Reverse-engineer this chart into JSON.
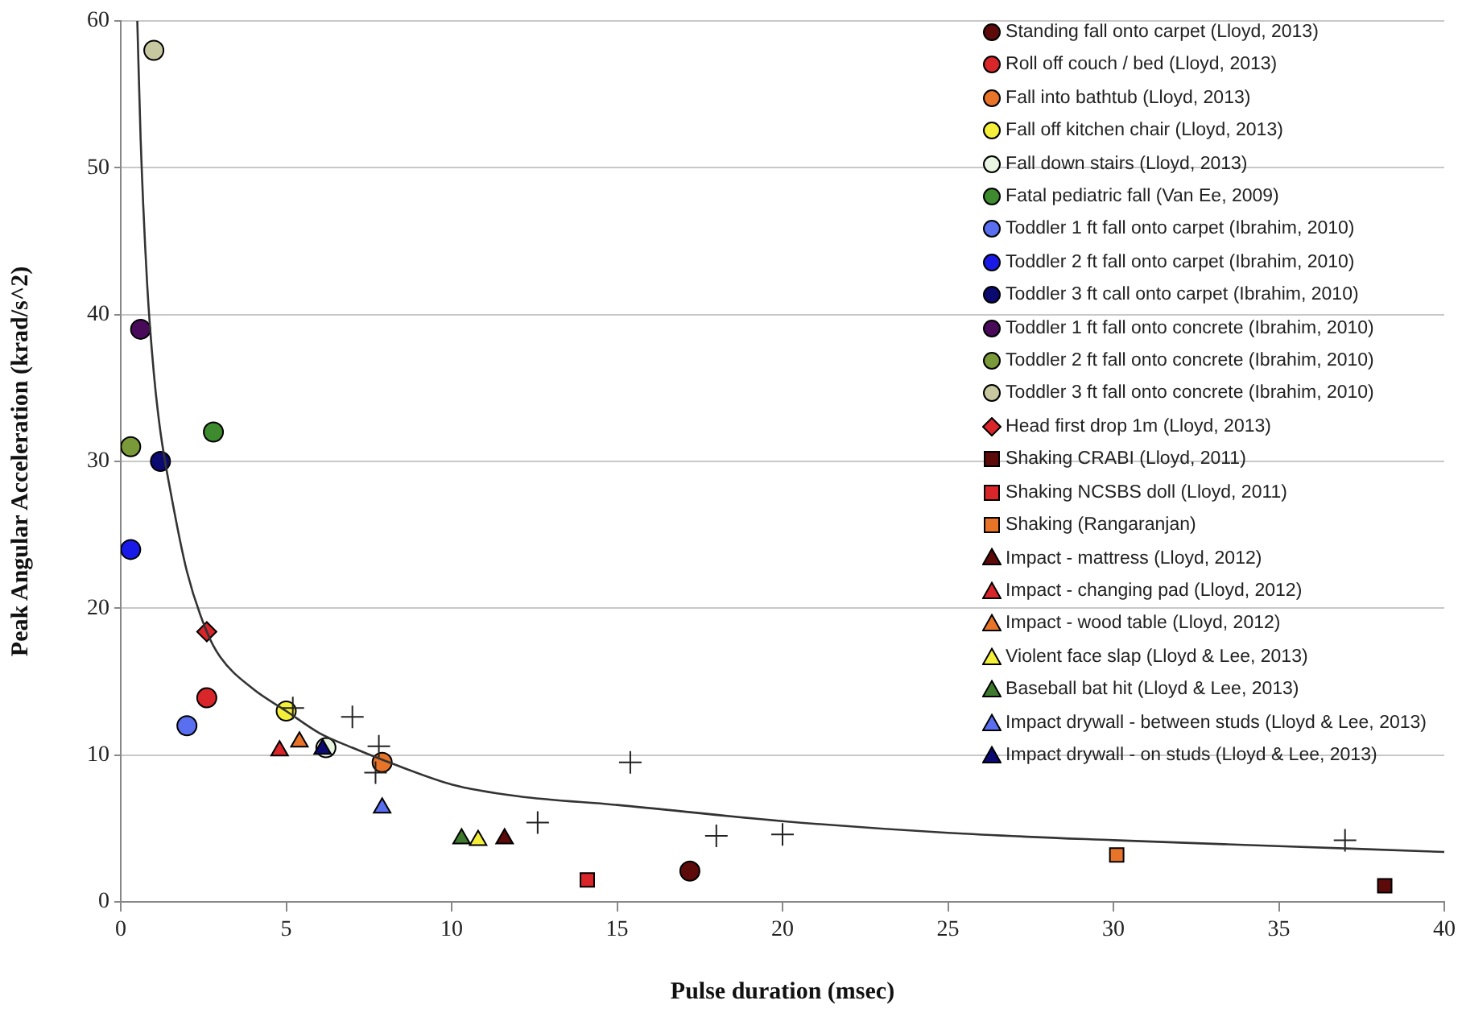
{
  "chart_data": {
    "type": "scatter",
    "xlabel": "Pulse duration (msec)",
    "ylabel": "Peak Angular Acceleration (krad/s^2)",
    "xlim": [
      0,
      40
    ],
    "xticks": [
      0,
      5,
      10,
      15,
      20,
      25,
      30,
      35,
      40
    ],
    "ylim": [
      0,
      60
    ],
    "yticks": [
      0,
      10,
      20,
      30,
      40,
      50,
      60
    ],
    "grid": "y",
    "legend": "top right",
    "series": [
      {
        "name": "Standing fall onto carpet (Lloyd, 2013)",
        "color": "#5c0a0a",
        "marker": "circle",
        "x": [
          17.2
        ],
        "values": [
          2.1
        ]
      },
      {
        "name": "Roll off couch / bed (Lloyd, 2013)",
        "color": "#d9262a",
        "marker": "circle",
        "x": [
          2.6
        ],
        "values": [
          13.9
        ]
      },
      {
        "name": "Fall into bathtub (Lloyd, 2013)",
        "color": "#e8742a",
        "marker": "circle",
        "x": [
          7.9
        ],
        "values": [
          9.5
        ]
      },
      {
        "name": "Fall off kitchen chair (Lloyd, 2013)",
        "color": "#f3ef3a",
        "marker": "circle",
        "x": [
          5.0
        ],
        "values": [
          13.0
        ]
      },
      {
        "name": "Fall down stairs (Lloyd, 2013)",
        "color": "#e8f5e0",
        "marker": "circle",
        "x": [
          6.2
        ],
        "values": [
          10.5
        ]
      },
      {
        "name": "Fatal pediatric fall (Van Ee, 2009)",
        "color": "#3e8a2e",
        "marker": "circle",
        "x": [
          2.8
        ],
        "values": [
          32.0
        ]
      },
      {
        "name": "Toddler 1 ft fall onto carpet (Ibrahim, 2010)",
        "color": "#5a6ef0",
        "marker": "circle",
        "x": [
          2.0
        ],
        "values": [
          12.0
        ]
      },
      {
        "name": "Toddler 2 ft fall onto carpet (Ibrahim, 2010)",
        "color": "#1a1ae8",
        "marker": "circle",
        "x": [
          0.3
        ],
        "values": [
          24.0
        ]
      },
      {
        "name": "Toddler 3 ft call onto carpet (Ibrahim, 2010)",
        "color": "#0a0a70",
        "marker": "circle",
        "x": [
          1.2
        ],
        "values": [
          30.0
        ]
      },
      {
        "name": "Toddler 1 ft fall onto concrete (Ibrahim, 2010)",
        "color": "#4a0a5a",
        "marker": "circle",
        "x": [
          0.6
        ],
        "values": [
          39.0
        ]
      },
      {
        "name": "Toddler 2 ft fall onto concrete (Ibrahim, 2010)",
        "color": "#7a9a3a",
        "marker": "circle",
        "x": [
          0.3
        ],
        "values": [
          31.0
        ]
      },
      {
        "name": "Toddler 3 ft fall onto concrete (Ibrahim, 2010)",
        "color": "#c8c8a0",
        "marker": "circle",
        "x": [
          1.0
        ],
        "values": [
          58.0
        ]
      },
      {
        "name": "Head first drop 1m (Lloyd, 2013)",
        "color": "#d9262a",
        "marker": "diamond",
        "x": [
          2.6
        ],
        "values": [
          18.4
        ]
      },
      {
        "name": "Shaking CRABI (Lloyd, 2011)",
        "color": "#5c0a0a",
        "marker": "square",
        "x": [
          38.2
        ],
        "values": [
          1.1
        ]
      },
      {
        "name": "Shaking NCSBS doll (Lloyd, 2011)",
        "color": "#d9262a",
        "marker": "square",
        "x": [
          14.1
        ],
        "values": [
          1.5
        ]
      },
      {
        "name": "Shaking (Rangaranjan)",
        "color": "#e8742a",
        "marker": "square",
        "x": [
          30.1
        ],
        "values": [
          3.2
        ]
      },
      {
        "name": "Impact - mattress (Lloyd, 2012)",
        "color": "#5c0a0a",
        "marker": "triangle",
        "x": [
          11.6
        ],
        "values": [
          4.3
        ]
      },
      {
        "name": "Impact - changing pad (Lloyd, 2012)",
        "color": "#d9262a",
        "marker": "triangle",
        "x": [
          4.8
        ],
        "values": [
          10.3
        ]
      },
      {
        "name": "Impact - wood table (Lloyd, 2012)",
        "color": "#e8742a",
        "marker": "triangle",
        "x": [
          5.4
        ],
        "values": [
          10.9
        ]
      },
      {
        "name": "Violent face slap (Lloyd & Lee, 2013)",
        "color": "#f3ef3a",
        "marker": "triangle",
        "x": [
          10.8
        ],
        "values": [
          4.2
        ]
      },
      {
        "name": "Baseball bat hit (Lloyd & Lee, 2013)",
        "color": "#3e7a2e",
        "marker": "triangle",
        "x": [
          10.3
        ],
        "values": [
          4.3
        ]
      },
      {
        "name": "Impact drywall - between studs (Lloyd & Lee, 2013)",
        "color": "#5a6ef0",
        "marker": "triangle",
        "x": [
          7.9
        ],
        "values": [
          6.4
        ]
      },
      {
        "name": "Impact drywall - on studs (Lloyd & Lee, 2013)",
        "color": "#0a0a70",
        "marker": "triangle",
        "x": [
          6.1
        ],
        "values": [
          10.4
        ]
      },
      {
        "color": "#222222",
        "marker": "cross",
        "x": [
          5.2,
          7.0,
          7.8,
          7.7,
          15.4,
          12.6,
          18.0,
          20.0,
          37.0
        ],
        "values": [
          13.2,
          12.6,
          10.6,
          8.8,
          9.5,
          5.4,
          4.5,
          4.6,
          4.2
        ]
      },
      {
        "type": "line",
        "color": "#333333",
        "marker": "none",
        "x": [
          0.5,
          0.6,
          0.8,
          1,
          1.2,
          1.5,
          2,
          2.6,
          3,
          4,
          5,
          6,
          7,
          8,
          10,
          12,
          15,
          20,
          25,
          30,
          35,
          40
        ],
        "values": [
          60,
          52,
          42,
          36,
          32,
          28,
          22.5,
          18.4,
          16.7,
          14.5,
          13,
          11.5,
          10.5,
          9.6,
          8.0,
          7.2,
          6.6,
          5.5,
          4.7,
          4.2,
          3.8,
          3.4
        ]
      }
    ]
  }
}
